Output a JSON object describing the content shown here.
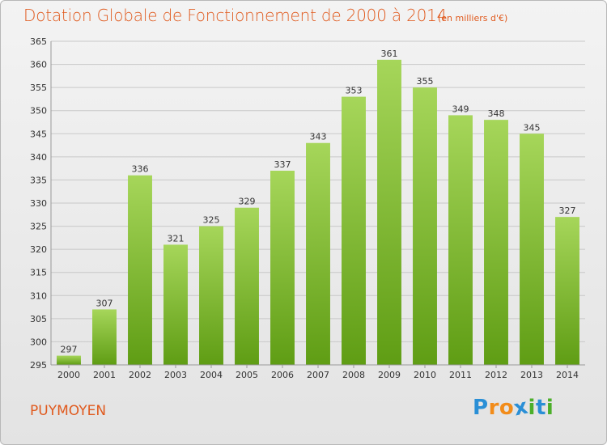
{
  "title": "Dotation Globale de Fonctionnement de 2000 à 2014",
  "subtitle": "(en milliers d'€)",
  "commune": "PUYMOYEN",
  "logo": {
    "letters": [
      "P",
      "r",
      "o",
      "x",
      "i",
      "t",
      "i"
    ],
    "colors": [
      "#2a8fd6",
      "#f28c1a",
      "#f28c1a",
      "#2a8fd6",
      "#4caf2a",
      "#2a8fd6",
      "#4caf2a"
    ]
  },
  "colors": {
    "bar_top": "#a6d65a",
    "bar_bottom": "#5f9d14",
    "grid": "#c8c8c8",
    "title": "#e05a1e"
  },
  "chart_data": {
    "type": "bar",
    "categories": [
      "2000",
      "2001",
      "2002",
      "2003",
      "2004",
      "2005",
      "2006",
      "2007",
      "2008",
      "2009",
      "2010",
      "2011",
      "2012",
      "2013",
      "2014"
    ],
    "values": [
      297,
      307,
      336,
      321,
      325,
      329,
      337,
      343,
      353,
      361,
      355,
      349,
      348,
      345,
      327
    ],
    "title": "Dotation Globale de Fonctionnement de 2000 à 2014",
    "subtitle": "(en milliers d'€)",
    "xlabel": "",
    "ylabel": "",
    "ylim": [
      295,
      365
    ],
    "yticks": [
      295,
      300,
      305,
      310,
      315,
      320,
      325,
      330,
      335,
      340,
      345,
      350,
      355,
      360,
      365
    ],
    "grid": true
  }
}
